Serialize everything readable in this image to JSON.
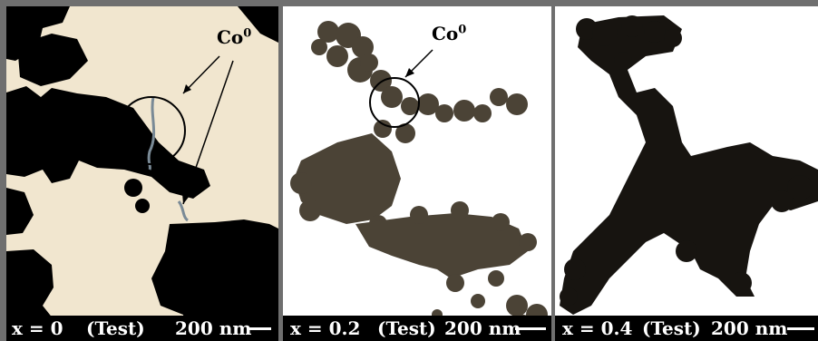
{
  "panels": [
    {
      "id": "p1",
      "caption_x": "x = 0",
      "caption_kind": "(Test)",
      "caption_scale": "200 nm",
      "annotation": "Co",
      "annotation_sup": "0",
      "background_color": "#f1e6cf",
      "particle_color": "#000000"
    },
    {
      "id": "p2",
      "caption_x": "x = 0.2",
      "caption_kind": "(Test)",
      "caption_scale": "200 nm",
      "annotation": "Co",
      "annotation_sup": "0",
      "background_color": "#ffffff",
      "particle_color": "#4b4336"
    },
    {
      "id": "p3",
      "caption_x": "x = 0.4",
      "caption_kind": "(Test)",
      "caption_scale": "200 nm",
      "background_color": "#ffffff",
      "particle_color": "#171410"
    }
  ]
}
